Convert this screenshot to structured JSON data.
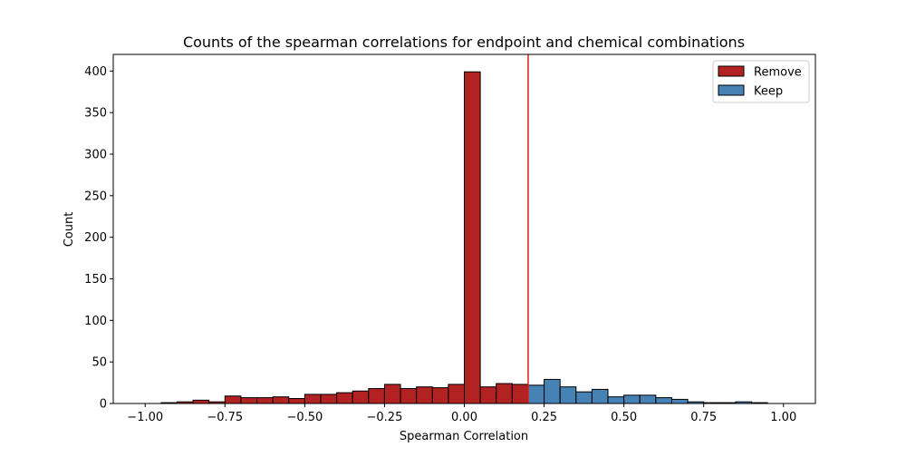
{
  "chart_data": {
    "type": "bar",
    "title": "Counts of the spearman correlations for endpoint and chemical combinations",
    "xlabel": "Spearman Correlation",
    "ylabel": "Count",
    "xlim": [
      -1.1,
      1.1
    ],
    "ylim": [
      0,
      420
    ],
    "xticks": [
      -1.0,
      -0.75,
      -0.5,
      -0.25,
      0.0,
      0.25,
      0.5,
      0.75,
      1.0
    ],
    "xtick_labels": [
      "−1.00",
      "−0.75",
      "−0.50",
      "−0.25",
      "0.00",
      "0.25",
      "0.50",
      "0.75",
      "1.00"
    ],
    "yticks": [
      0,
      50,
      100,
      150,
      200,
      250,
      300,
      350,
      400
    ],
    "ytick_labels": [
      "0",
      "50",
      "100",
      "150",
      "200",
      "250",
      "300",
      "350",
      "400"
    ],
    "bin_width": 0.05,
    "bin_start": -1.0,
    "threshold": 0.2,
    "threshold_color": "#e31a1c",
    "grid": false,
    "legend_position": "top-right",
    "series": [
      {
        "name": "Remove",
        "color": "#b22222",
        "bins": [
          {
            "x": -0.95,
            "count": 1
          },
          {
            "x": -0.9,
            "count": 2
          },
          {
            "x": -0.85,
            "count": 4
          },
          {
            "x": -0.8,
            "count": 2
          },
          {
            "x": -0.75,
            "count": 9
          },
          {
            "x": -0.7,
            "count": 7
          },
          {
            "x": -0.65,
            "count": 7
          },
          {
            "x": -0.6,
            "count": 8
          },
          {
            "x": -0.55,
            "count": 6
          },
          {
            "x": -0.5,
            "count": 11
          },
          {
            "x": -0.45,
            "count": 11
          },
          {
            "x": -0.4,
            "count": 13
          },
          {
            "x": -0.35,
            "count": 15
          },
          {
            "x": -0.3,
            "count": 18
          },
          {
            "x": -0.25,
            "count": 23
          },
          {
            "x": -0.2,
            "count": 18
          },
          {
            "x": -0.15,
            "count": 20
          },
          {
            "x": -0.1,
            "count": 19
          },
          {
            "x": -0.05,
            "count": 23
          },
          {
            "x": 0.0,
            "count": 399
          },
          {
            "x": 0.05,
            "count": 20
          },
          {
            "x": 0.1,
            "count": 24
          },
          {
            "x": 0.15,
            "count": 23
          }
        ]
      },
      {
        "name": "Keep",
        "color": "#4682b4",
        "bins": [
          {
            "x": 0.2,
            "count": 22
          },
          {
            "x": 0.25,
            "count": 29
          },
          {
            "x": 0.3,
            "count": 20
          },
          {
            "x": 0.35,
            "count": 14
          },
          {
            "x": 0.4,
            "count": 17
          },
          {
            "x": 0.45,
            "count": 8
          },
          {
            "x": 0.5,
            "count": 10
          },
          {
            "x": 0.55,
            "count": 10
          },
          {
            "x": 0.6,
            "count": 7
          },
          {
            "x": 0.65,
            "count": 5
          },
          {
            "x": 0.7,
            "count": 2
          },
          {
            "x": 0.75,
            "count": 1
          },
          {
            "x": 0.8,
            "count": 1
          },
          {
            "x": 0.85,
            "count": 2
          },
          {
            "x": 0.9,
            "count": 1
          }
        ]
      }
    ]
  }
}
